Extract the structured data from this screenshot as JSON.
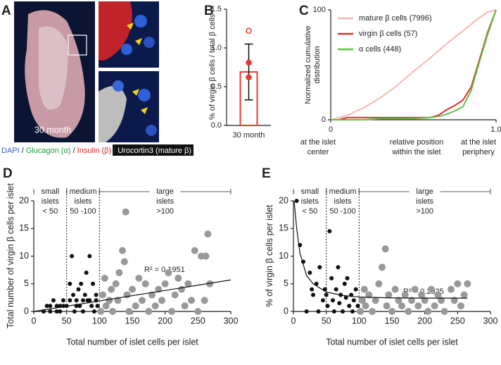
{
  "panel_labels": [
    "A",
    "B",
    "C",
    "D",
    "E"
  ],
  "panel_a": {
    "time": "30 month",
    "separator": "/",
    "stains": [
      "DAPI",
      "Glucagon (α)",
      "Insulin (β)",
      "Urocortin3 (mature β)"
    ],
    "stain_colors": [
      "#2f5fd0",
      "#1a9e3a",
      "#d9262c",
      "#ffffff"
    ]
  },
  "chart_data": [
    {
      "type": "bar",
      "ylabel": "% of virgin β cells / total β cells",
      "categories": [
        "30 month"
      ],
      "values": [
        0.69
      ],
      "errors": [
        0.36
      ],
      "points": [
        1.22,
        0.81,
        0.62
      ],
      "points_filled": [
        false,
        true,
        true
      ],
      "color": "#e8392b",
      "ylim": [
        0,
        1.5
      ],
      "yticks": [
        {
          "value": 0,
          "label": "0.0"
        },
        0.5,
        {
          "value": 1,
          "label": "1.0"
        },
        1.5
      ]
    },
    {
      "type": "line",
      "ylabel": [
        "Normalized cumulative",
        "distribution"
      ],
      "x_annotations": [
        [
          "at the islet",
          "center"
        ],
        [
          "relative position",
          "within the islet"
        ],
        [
          "at the islet",
          "periphery"
        ]
      ],
      "xlim": [
        0,
        1
      ],
      "ylim": [
        0,
        100
      ],
      "xticks": [
        0,
        {
          "value": 1,
          "label": "1.0"
        }
      ],
      "yticks": [
        0,
        100
      ],
      "series": [
        {
          "name": "mature β cells (7996)",
          "color": "#f4b8b4",
          "x": [
            0,
            0.1,
            0.2,
            0.3,
            0.4,
            0.5,
            0.6,
            0.7,
            0.8,
            0.9,
            0.95,
            1
          ],
          "values": [
            0,
            4,
            11,
            20,
            31,
            44,
            56,
            69,
            81,
            93,
            98,
            100
          ]
        },
        {
          "name": "virgin β cells (57)",
          "color": "#e0302a",
          "x": [
            0,
            0.05,
            0.1,
            0.2,
            0.3,
            0.4,
            0.5,
            0.6,
            0.65,
            0.7,
            0.75,
            0.8,
            0.85,
            0.9,
            0.95,
            1
          ],
          "values": [
            0,
            0,
            2,
            2,
            2,
            2,
            2,
            2,
            4,
            9,
            13,
            18,
            30,
            55,
            80,
            100
          ]
        },
        {
          "name": "α cells (448)",
          "color": "#5cc24a",
          "x": [
            0,
            0.05,
            0.1,
            0.2,
            0.3,
            0.4,
            0.5,
            0.6,
            0.65,
            0.7,
            0.75,
            0.8,
            0.85,
            0.9,
            0.95,
            1
          ],
          "values": [
            0,
            0,
            0,
            0,
            1,
            1,
            1,
            2,
            3,
            5,
            8,
            12,
            27,
            53,
            78,
            100
          ]
        }
      ]
    },
    {
      "type": "scatter",
      "xlabel": "Total number of islet cells per islet",
      "ylabel": "Total number of virgin β cells per islet",
      "annotation": "R² = 0.1951",
      "xlim": [
        0,
        300
      ],
      "ylim": [
        0,
        20
      ],
      "xticks": [
        0,
        50,
        100,
        150,
        200,
        250,
        300
      ],
      "yticks": [
        0,
        5,
        10,
        15,
        20
      ],
      "vlines": [
        50,
        100
      ],
      "regions": [
        {
          "lines": [
            "small",
            "islets",
            "< 50"
          ],
          "from": 0,
          "to": 50
        },
        {
          "lines": [
            "medium",
            "islets",
            "50 -100"
          ],
          "from": 50,
          "to": 100
        },
        {
          "lines": [
            "large",
            "islets",
            ">100"
          ],
          "from": 100,
          "to": 300
        }
      ],
      "series": [
        {
          "color": "#111111",
          "marker_size": 3,
          "x": [
            15,
            20,
            25,
            30,
            35,
            40,
            45,
            50,
            55,
            58,
            60,
            62,
            65,
            68,
            70,
            72,
            75,
            78,
            80,
            82,
            85,
            88,
            90,
            92,
            95,
            97,
            25,
            40,
            55,
            65,
            75,
            85,
            95,
            35,
            45
          ],
          "values": [
            0,
            1,
            0,
            2,
            1,
            0,
            2,
            1,
            5,
            10,
            3,
            0,
            2,
            4,
            1,
            5,
            0,
            3,
            7,
            2,
            10,
            1,
            5,
            0,
            3,
            1,
            1,
            1,
            2,
            1,
            2,
            2,
            2,
            0,
            1
          ]
        },
        {
          "color": "#999999",
          "marker_size": 5,
          "x": [
            102,
            105,
            108,
            110,
            115,
            118,
            120,
            125,
            128,
            130,
            135,
            138,
            140,
            142,
            145,
            150,
            155,
            160,
            165,
            170,
            175,
            180,
            185,
            190,
            195,
            200,
            205,
            210,
            215,
            220,
            225,
            230,
            235,
            240,
            245,
            250,
            255,
            260,
            262,
            265,
            268
          ],
          "values": [
            0,
            3,
            6,
            1,
            2,
            4,
            0,
            5,
            2,
            7,
            11,
            9,
            18,
            3,
            0,
            4,
            1,
            6,
            2,
            5,
            0,
            3,
            1,
            4,
            2,
            5,
            7,
            0,
            3,
            6,
            4,
            1,
            5,
            2,
            11,
            0,
            10,
            2,
            10,
            14,
            5
          ]
        },
        {
          "color": "#111111",
          "mark": "line",
          "x": [
            0,
            300
          ],
          "values": [
            0,
            5.7
          ]
        }
      ]
    },
    {
      "type": "scatter",
      "xlabel": "Total number of islet cells per islet",
      "ylabel": "% of virgin β cells per islet",
      "annotation": "R² = 0.2925",
      "xlim": [
        0,
        300
      ],
      "ylim": [
        0,
        20
      ],
      "xticks": [
        0,
        50,
        100,
        150,
        200,
        250,
        300
      ],
      "yticks": [
        0,
        5,
        10,
        15,
        20
      ],
      "vlines": [
        50,
        100
      ],
      "regions": [
        {
          "lines": [
            "small",
            "islets",
            "< 50"
          ],
          "from": 0,
          "to": 50
        },
        {
          "lines": [
            "medium",
            "islets",
            "50 -100"
          ],
          "from": 50,
          "to": 100
        },
        {
          "lines": [
            "large",
            "islets",
            ">100"
          ],
          "from": 100,
          "to": 300
        }
      ],
      "series": [
        {
          "color": "#111111",
          "marker_size": 3,
          "x": [
            5,
            10,
            15,
            20,
            25,
            28,
            30,
            35,
            38,
            40,
            45,
            48,
            50,
            52,
            55,
            58,
            60,
            62,
            65,
            68,
            70,
            72,
            75,
            78,
            80,
            82,
            85,
            88,
            90,
            92,
            95,
            98
          ],
          "values": [
            20,
            12,
            9,
            0,
            7,
            4,
            3,
            5,
            0,
            8,
            2,
            4,
            3,
            1,
            14.5,
            6,
            2,
            0,
            4,
            8,
            1.5,
            3,
            0,
            5,
            2.5,
            6,
            1,
            3,
            0,
            2,
            4,
            1
          ]
        },
        {
          "color": "#999999",
          "marker_size": 5,
          "x": [
            102,
            105,
            108,
            110,
            115,
            120,
            125,
            130,
            135,
            140,
            142,
            145,
            150,
            155,
            160,
            165,
            170,
            175,
            180,
            185,
            190,
            195,
            200,
            205,
            210,
            215,
            220,
            225,
            230,
            240,
            245,
            250,
            255,
            260,
            265
          ],
          "values": [
            0,
            2,
            4,
            1,
            3,
            0,
            2,
            5,
            8,
            11.3,
            1,
            3,
            0,
            4,
            2,
            1,
            3,
            0,
            2,
            4,
            1,
            3,
            2,
            0,
            4,
            1,
            3,
            2,
            0,
            4,
            2,
            5,
            1,
            3,
            5
          ]
        },
        {
          "color": "#111111",
          "mark": "line",
          "x": [
            1,
            5,
            10,
            20,
            30,
            50,
            75,
            100,
            150,
            200,
            265
          ],
          "values": [
            20,
            15,
            10.5,
            6.5,
            5,
            3.5,
            2.9,
            2.6,
            2.45,
            2.4,
            2.4
          ]
        }
      ]
    }
  ]
}
